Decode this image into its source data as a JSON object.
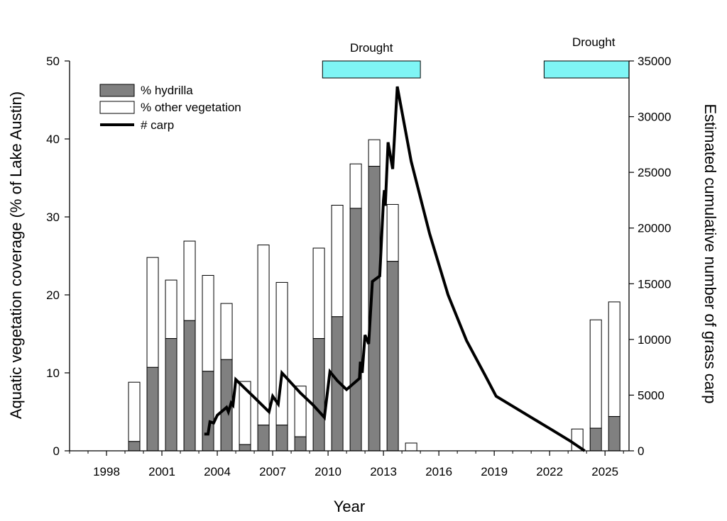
{
  "chart_data": {
    "type": "bar",
    "xlabel": "Year",
    "ylabel_left": "Aquatic vegetation coverage (% of Lake Austin)",
    "ylabel_right": "Estimated cumulative number of grass carp",
    "xlim": [
      1996,
      2026.3
    ],
    "ylim_left": [
      0,
      50
    ],
    "ylim_right": [
      0,
      35000
    ],
    "x_ticks": [
      1998,
      2001,
      2004,
      2007,
      2010,
      2013,
      2016,
      2019,
      2022,
      2025
    ],
    "y_left_ticks": [
      0,
      10,
      20,
      30,
      40,
      50
    ],
    "y_right_ticks": [
      0,
      5000,
      10000,
      15000,
      20000,
      25000,
      30000,
      35000
    ],
    "legend": {
      "position": "top-left",
      "entries": [
        {
          "key": "hydrilla",
          "label": "% hydrilla"
        },
        {
          "key": "other",
          "label": "% other vegetation"
        },
        {
          "key": "carp",
          "label": "# carp"
        }
      ]
    },
    "colors": {
      "hydrilla": "#808080",
      "other": "#ffffff",
      "carp_line": "#000000",
      "drought": "#7ff5f5"
    },
    "drought_periods": [
      {
        "label": "Drought",
        "start": 2009.7,
        "end": 2015.0
      },
      {
        "label": "Drought",
        "start": 2021.7,
        "end": 2026.3
      }
    ],
    "bars": [
      {
        "year": 1999.5,
        "hydrilla": 1.2,
        "total": 8.8
      },
      {
        "year": 2000.5,
        "hydrilla": 10.7,
        "total": 24.8
      },
      {
        "year": 2001.5,
        "hydrilla": 14.4,
        "total": 21.9
      },
      {
        "year": 2002.5,
        "hydrilla": 16.7,
        "total": 26.9
      },
      {
        "year": 2003.5,
        "hydrilla": 10.2,
        "total": 22.5
      },
      {
        "year": 2004.5,
        "hydrilla": 11.7,
        "total": 18.9
      },
      {
        "year": 2005.5,
        "hydrilla": 0.8,
        "total": 8.9
      },
      {
        "year": 2006.5,
        "hydrilla": 3.3,
        "total": 26.4
      },
      {
        "year": 2007.5,
        "hydrilla": 3.3,
        "total": 21.6
      },
      {
        "year": 2008.5,
        "hydrilla": 1.8,
        "total": 8.3
      },
      {
        "year": 2009.5,
        "hydrilla": 14.4,
        "total": 26.0
      },
      {
        "year": 2010.5,
        "hydrilla": 17.2,
        "total": 31.5
      },
      {
        "year": 2011.5,
        "hydrilla": 31.1,
        "total": 36.8
      },
      {
        "year": 2012.5,
        "hydrilla": 36.5,
        "total": 39.9
      },
      {
        "year": 2013.5,
        "hydrilla": 24.3,
        "total": 31.6
      },
      {
        "year": 2014.5,
        "hydrilla": 0,
        "total": 1.0
      },
      {
        "year": 2023.5,
        "hydrilla": 0,
        "total": 2.8
      },
      {
        "year": 2024.5,
        "hydrilla": 2.9,
        "total": 16.8
      },
      {
        "year": 2025.5,
        "hydrilla": 4.4,
        "total": 19.1
      }
    ],
    "carp": [
      [
        2003.3,
        1500
      ],
      [
        2003.5,
        1500
      ],
      [
        2003.6,
        2600
      ],
      [
        2003.8,
        2500
      ],
      [
        2004.0,
        3200
      ],
      [
        2004.5,
        3900
      ],
      [
        2004.6,
        3500
      ],
      [
        2004.75,
        4300
      ],
      [
        2004.85,
        4100
      ],
      [
        2005.0,
        6400
      ],
      [
        2005.5,
        5600
      ],
      [
        2006.0,
        4800
      ],
      [
        2006.8,
        3500
      ],
      [
        2007.0,
        4900
      ],
      [
        2007.3,
        4200
      ],
      [
        2007.5,
        7000
      ],
      [
        2008.5,
        5200
      ],
      [
        2009.2,
        4100
      ],
      [
        2009.8,
        3000
      ],
      [
        2010.1,
        7100
      ],
      [
        2010.5,
        6300
      ],
      [
        2011.0,
        5500
      ],
      [
        2011.7,
        6500
      ],
      [
        2011.75,
        8000
      ],
      [
        2011.85,
        7000
      ],
      [
        2012.0,
        10400
      ],
      [
        2012.2,
        9600
      ],
      [
        2012.4,
        15200
      ],
      [
        2012.8,
        15700
      ],
      [
        2013.0,
        22500
      ],
      [
        2013.05,
        23400
      ],
      [
        2013.1,
        22000
      ],
      [
        2013.25,
        27700
      ],
      [
        2013.5,
        25300
      ],
      [
        2013.75,
        32700
      ],
      [
        2014.5,
        26000
      ],
      [
        2015.5,
        19500
      ],
      [
        2016.5,
        14000
      ],
      [
        2017.5,
        9900
      ],
      [
        2018.5,
        6800
      ],
      [
        2019.1,
        4900
      ],
      [
        2020.1,
        3900
      ],
      [
        2021.1,
        2900
      ],
      [
        2022.1,
        1900
      ],
      [
        2023.1,
        900
      ],
      [
        2023.9,
        0
      ]
    ]
  }
}
